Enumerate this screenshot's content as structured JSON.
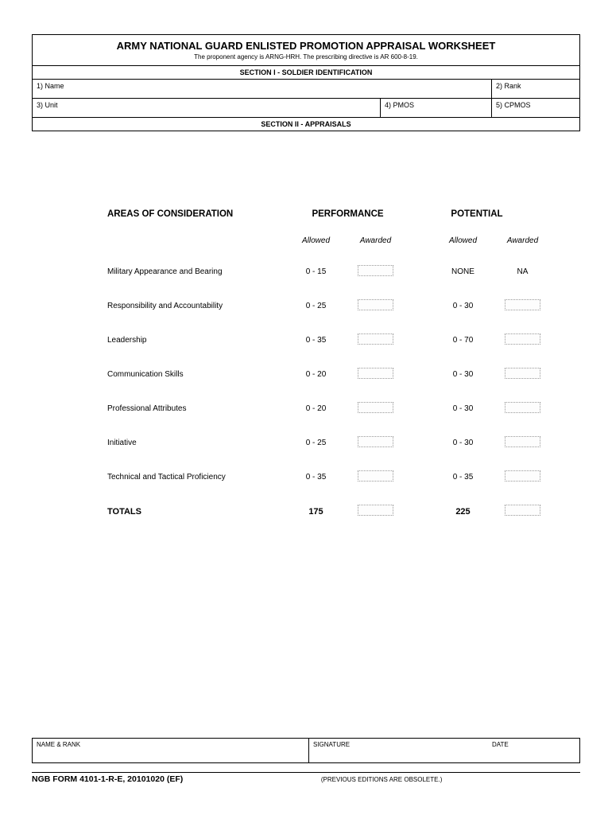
{
  "header": {
    "title": "ARMY NATIONAL GUARD ENLISTED PROMOTION APPRAISAL WORKSHEET",
    "subtitle": "The proponent agency is ARNG-HRH.  The prescribing directive is AR 600-8-19."
  },
  "section1": {
    "header": "SECTION I - SOLDIER IDENTIFICATION",
    "fields": {
      "name": "1) Name",
      "rank": "2) Rank",
      "unit": "3) Unit",
      "pmos": "4) PMOS",
      "cpmos": "5) CPMOS"
    }
  },
  "section2": {
    "header": "SECTION II - APPRAISALS"
  },
  "appraisal": {
    "col_headers": {
      "area": "AREAS OF CONSIDERATION",
      "performance": "PERFORMANCE",
      "potential": "POTENTIAL"
    },
    "sub_headers": {
      "allowed": "Allowed",
      "awarded": "Awarded"
    },
    "rows": [
      {
        "label": "Military Appearance and Bearing",
        "perf_allowed": "0 - 15",
        "perf_awarded_box": true,
        "pot_allowed": "NONE",
        "pot_awarded_text": "NA",
        "pot_awarded_box": false
      },
      {
        "label": "Responsibility and Accountability",
        "perf_allowed": "0 - 25",
        "perf_awarded_box": true,
        "pot_allowed": "0 - 30",
        "pot_awarded_box": true
      },
      {
        "label": "Leadership",
        "perf_allowed": "0 - 35",
        "perf_awarded_box": true,
        "pot_allowed": "0 - 70",
        "pot_awarded_box": true
      },
      {
        "label": "Communication Skills",
        "perf_allowed": "0 - 20",
        "perf_awarded_box": true,
        "pot_allowed": "0 - 30",
        "pot_awarded_box": true
      },
      {
        "label": "Professional Attributes",
        "perf_allowed": "0 - 20",
        "perf_awarded_box": true,
        "pot_allowed": "0 - 30",
        "pot_awarded_box": true
      },
      {
        "label": "Initiative",
        "perf_allowed": "0 - 25",
        "perf_awarded_box": true,
        "pot_allowed": "0 - 30",
        "pot_awarded_box": true
      },
      {
        "label": "Technical and Tactical Proficiency",
        "perf_allowed": "0 - 35",
        "perf_awarded_box": true,
        "pot_allowed": "0 - 35",
        "pot_awarded_box": true
      }
    ],
    "totals": {
      "label": "TOTALS",
      "perf_total": "175",
      "pot_total": "225"
    }
  },
  "footer": {
    "namerank": "NAME & RANK",
    "signature": "SIGNATURE",
    "date": "DATE"
  },
  "bottom": {
    "form_number": "NGB FORM 4101-1-R-E, 20101020 (EF)",
    "obsolete": "(PREVIOUS EDITIONS ARE OBSOLETE.)"
  }
}
